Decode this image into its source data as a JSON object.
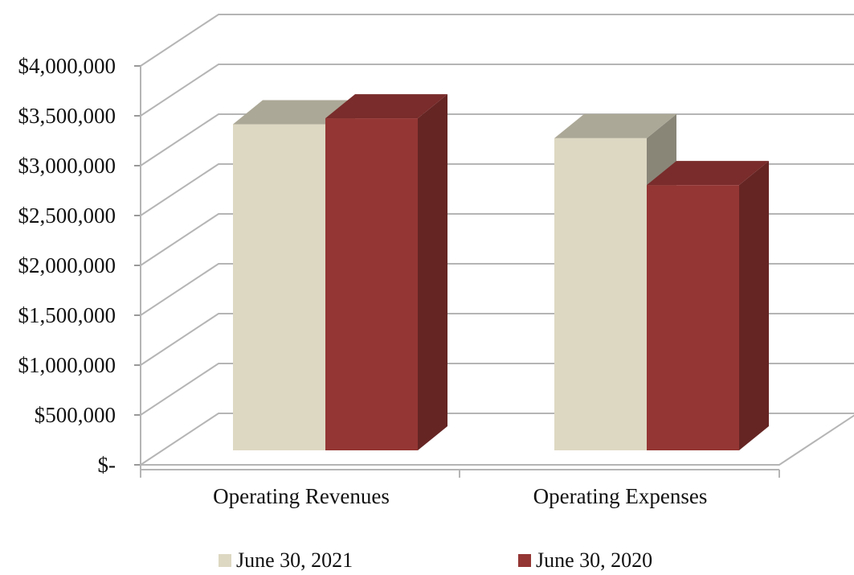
{
  "chart_data": {
    "type": "bar",
    "style": "3d-clustered-column",
    "categories": [
      "Operating Revenues",
      "Operating Expenses"
    ],
    "series": [
      {
        "name": "June 30, 2021",
        "values": [
          3270000,
          3130000
        ],
        "color": "#DDD8C2"
      },
      {
        "name": "June 30, 2020",
        "values": [
          3330000,
          2660000
        ],
        "color": "#943634"
      }
    ],
    "ylim": [
      0,
      4000000
    ],
    "ytick_values": [
      0,
      500000,
      1000000,
      1500000,
      2000000,
      2500000,
      3000000,
      3500000,
      4000000
    ],
    "ytick_labels": [
      "$-",
      "$500,000",
      "$1,000,000",
      "$1,500,000",
      "$2,000,000",
      "$2,500,000",
      "$3,000,000",
      "$3,500,000",
      "$4,000,000"
    ],
    "grid": true,
    "legend_position": "bottom",
    "title": "",
    "xlabel": "",
    "ylabel": ""
  }
}
